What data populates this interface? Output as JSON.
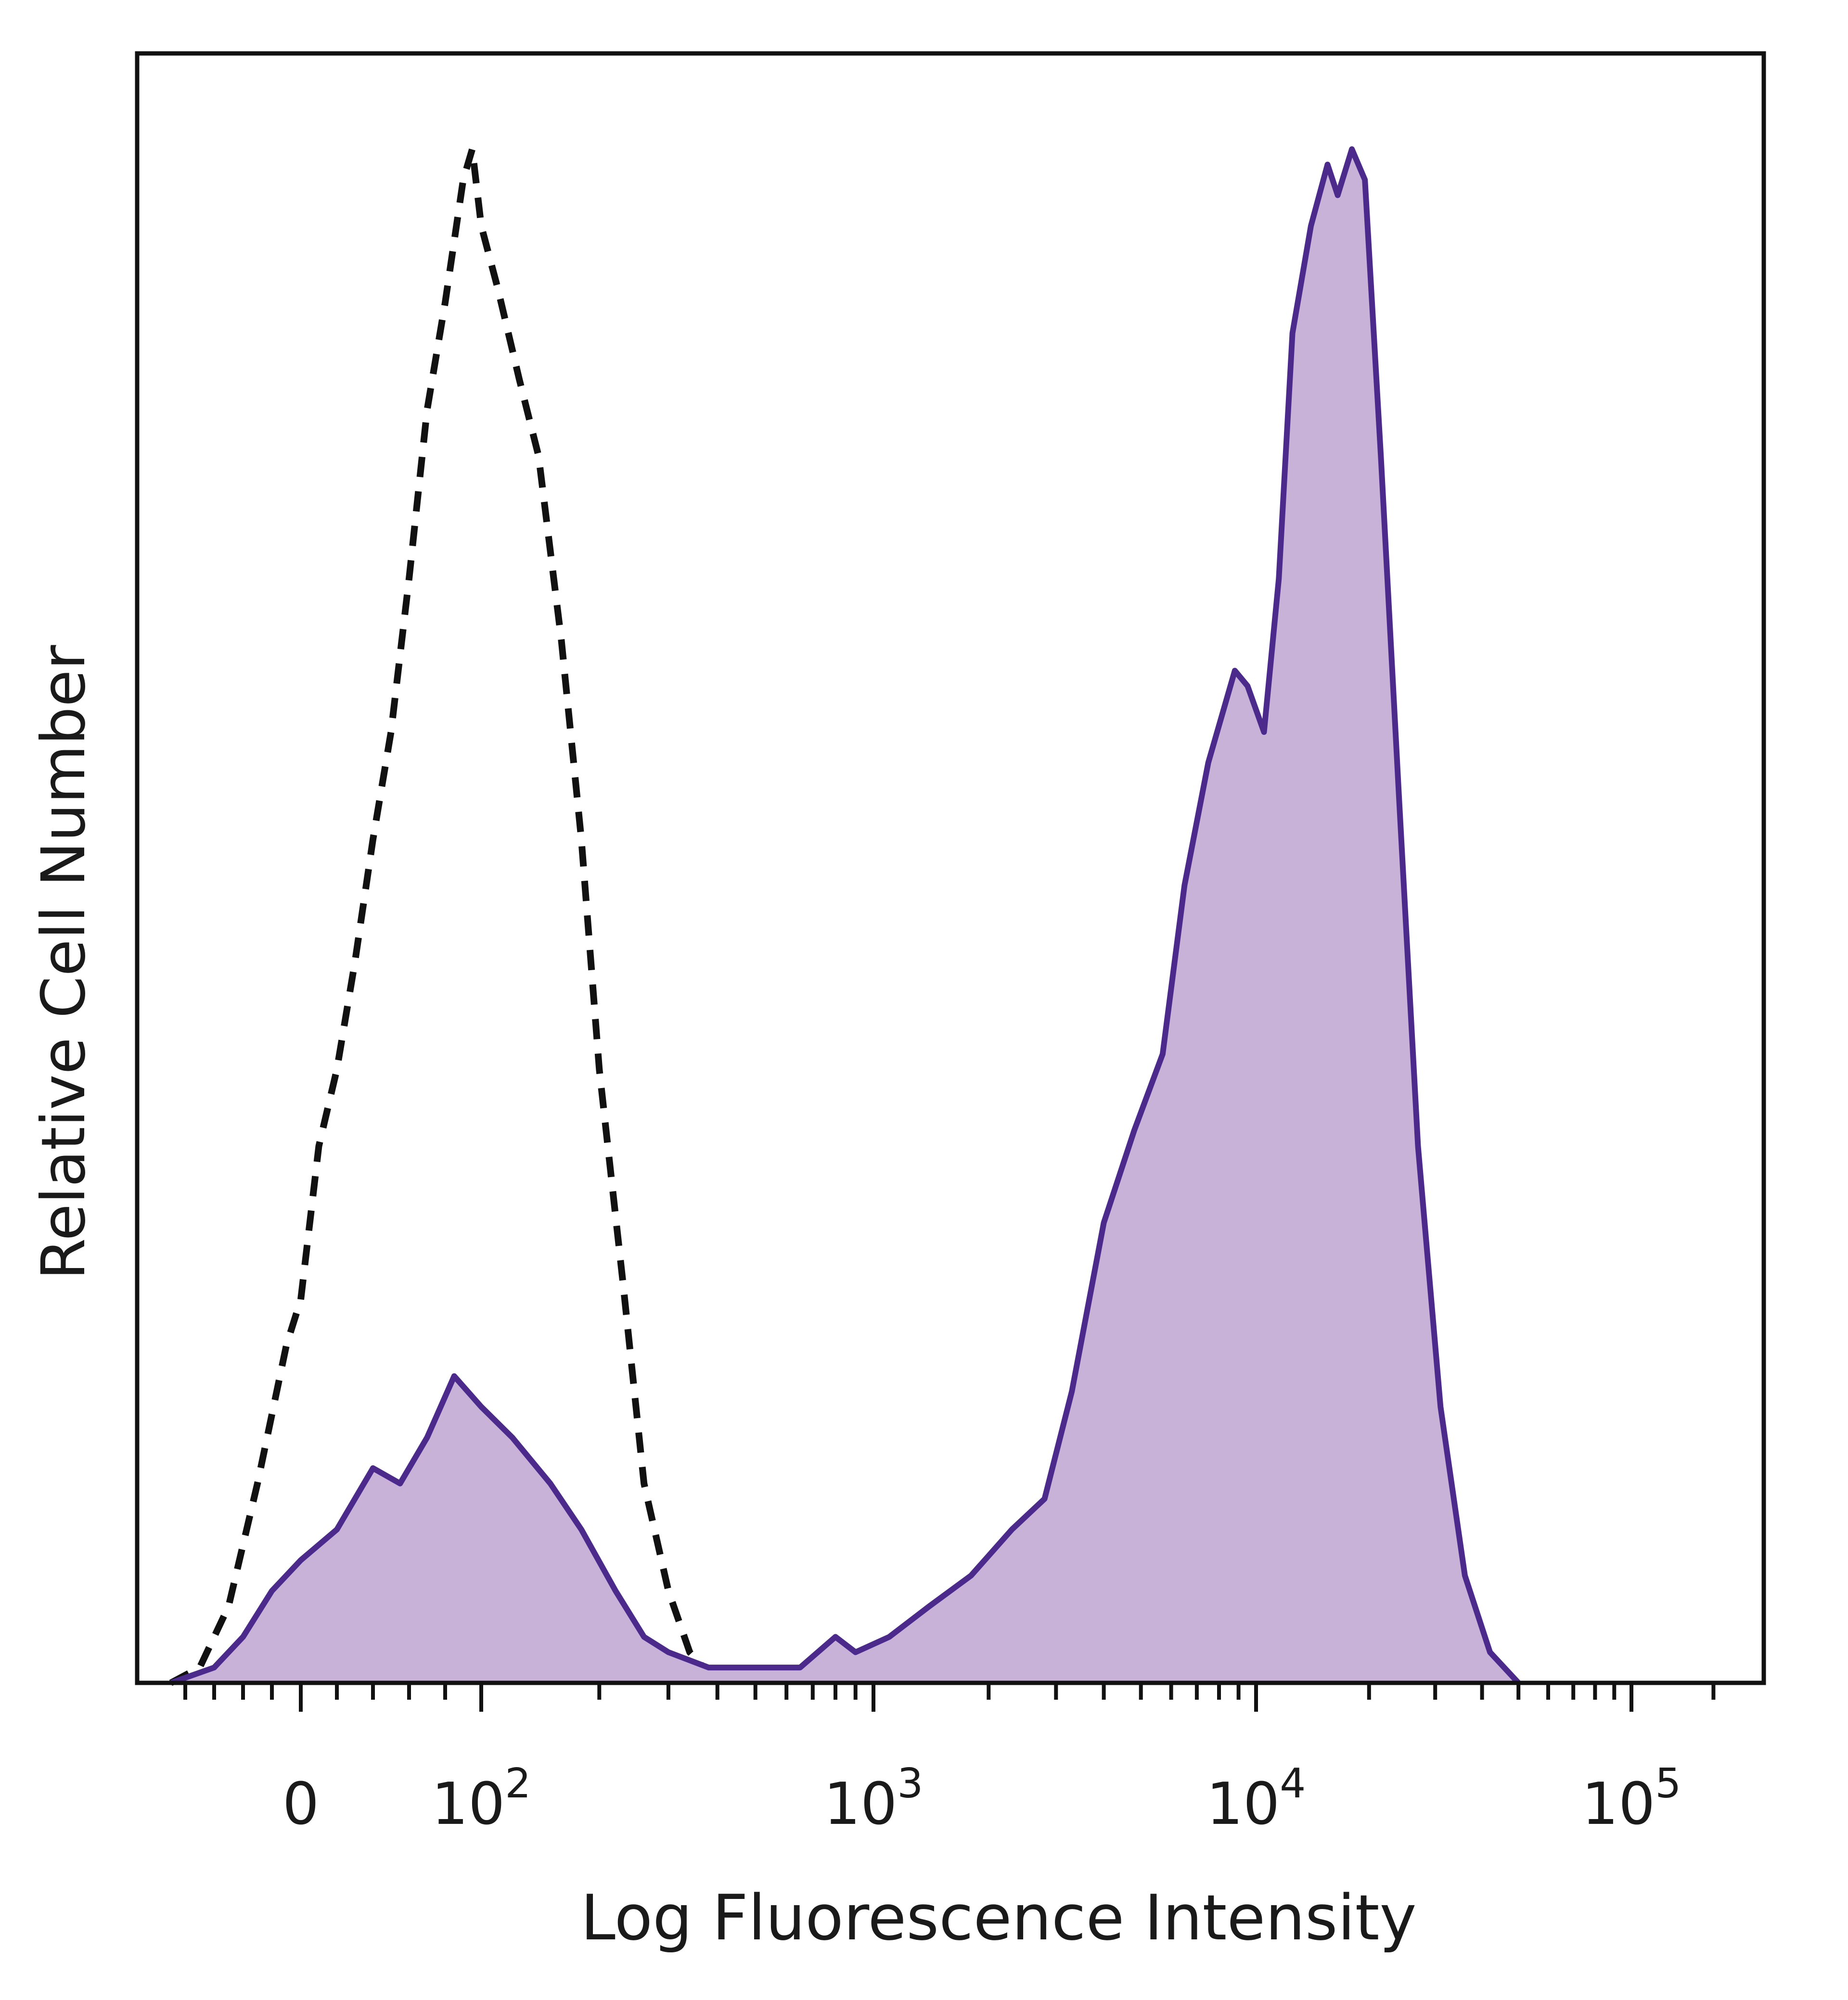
{
  "chart_data": {
    "type": "area",
    "title": "",
    "xlabel": "Log Fluorescence Intensity",
    "ylabel": "Relative Cell Number",
    "xscale": "biexponential (log with linear region around 0)",
    "xlim": [
      -90,
      300000
    ],
    "ylim": [
      0,
      1.0
    ],
    "grid": false,
    "legend": "none",
    "x_tick_labels": [
      {
        "value": 0,
        "label": "0"
      },
      {
        "value": 100,
        "label": "10",
        "exp": "2"
      },
      {
        "value": 1000,
        "label": "10",
        "exp": "3"
      },
      {
        "value": 10000,
        "label": "10",
        "exp": "4"
      },
      {
        "value": 100000,
        "label": "10",
        "exp": "5"
      }
    ],
    "series": [
      {
        "style": "dashed outline (isotype control)",
        "color": "#111111",
        "points": [
          [
            -90,
            0.0
          ],
          [
            -70,
            0.01
          ],
          [
            -50,
            0.05
          ],
          [
            -30,
            0.13
          ],
          [
            -10,
            0.22
          ],
          [
            0,
            0.25
          ],
          [
            10,
            0.35
          ],
          [
            20,
            0.4
          ],
          [
            30,
            0.47
          ],
          [
            40,
            0.55
          ],
          [
            50,
            0.62
          ],
          [
            60,
            0.72
          ],
          [
            70,
            0.83
          ],
          [
            80,
            0.9
          ],
          [
            90,
            0.98
          ],
          [
            95,
            1.0
          ],
          [
            100,
            0.95
          ],
          [
            110,
            0.91
          ],
          [
            125,
            0.85
          ],
          [
            140,
            0.8
          ],
          [
            160,
            0.68
          ],
          [
            180,
            0.55
          ],
          [
            200,
            0.4
          ],
          [
            230,
            0.26
          ],
          [
            260,
            0.13
          ],
          [
            300,
            0.06
          ],
          [
            340,
            0.02
          ],
          [
            400,
            0.0
          ]
        ]
      },
      {
        "style": "filled purple (stained)",
        "color": "#4b2a8c",
        "fill": "#c8b2d8",
        "points": [
          [
            -90,
            0.0
          ],
          [
            -60,
            0.01
          ],
          [
            -40,
            0.03
          ],
          [
            -20,
            0.06
          ],
          [
            0,
            0.08
          ],
          [
            20,
            0.1
          ],
          [
            40,
            0.14
          ],
          [
            55,
            0.13
          ],
          [
            70,
            0.16
          ],
          [
            85,
            0.2
          ],
          [
            100,
            0.18
          ],
          [
            120,
            0.16
          ],
          [
            150,
            0.13
          ],
          [
            180,
            0.1
          ],
          [
            220,
            0.06
          ],
          [
            260,
            0.03
          ],
          [
            300,
            0.02
          ],
          [
            380,
            0.01
          ],
          [
            500,
            0.01
          ],
          [
            650,
            0.01
          ],
          [
            800,
            0.03
          ],
          [
            900,
            0.02
          ],
          [
            1100,
            0.03
          ],
          [
            1400,
            0.05
          ],
          [
            1800,
            0.07
          ],
          [
            2300,
            0.1
          ],
          [
            2800,
            0.12
          ],
          [
            3300,
            0.19
          ],
          [
            4000,
            0.3
          ],
          [
            4800,
            0.36
          ],
          [
            5700,
            0.41
          ],
          [
            6500,
            0.52
          ],
          [
            7500,
            0.6
          ],
          [
            8800,
            0.66
          ],
          [
            9500,
            0.65
          ],
          [
            10500,
            0.62
          ],
          [
            11500,
            0.72
          ],
          [
            12500,
            0.88
          ],
          [
            14000,
            0.95
          ],
          [
            15500,
            0.99
          ],
          [
            16500,
            0.97
          ],
          [
            18000,
            1.0
          ],
          [
            19500,
            0.98
          ],
          [
            21500,
            0.8
          ],
          [
            24000,
            0.58
          ],
          [
            27000,
            0.35
          ],
          [
            31000,
            0.18
          ],
          [
            36000,
            0.07
          ],
          [
            42000,
            0.02
          ],
          [
            50000,
            0.0
          ]
        ]
      }
    ]
  }
}
